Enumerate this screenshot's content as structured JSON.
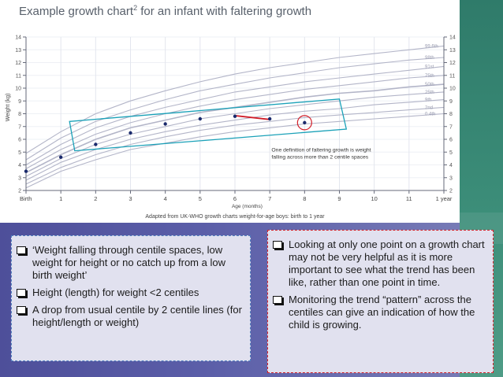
{
  "title": "Example growth chart",
  "title_sup": "2",
  "title_suffix": " for an infant with faltering growth",
  "chart_data": {
    "type": "line",
    "xlabel": "Age (months)",
    "ylabel": "Weight (kg)",
    "xlim": [
      0,
      12
    ],
    "ylim": [
      2,
      14
    ],
    "x_ticks": [
      "Birth",
      "1",
      "2",
      "3",
      "4",
      "5",
      "6",
      "7",
      "8",
      "9",
      "10",
      "11",
      "1 year"
    ],
    "y_ticks": [
      2,
      3,
      4,
      5,
      6,
      7,
      8,
      9,
      10,
      11,
      12,
      13,
      14
    ],
    "centile_labels": [
      "99.6th",
      "98th",
      "91st",
      "75th",
      "50th",
      "25th",
      "9th",
      "2nd",
      "0.4th"
    ],
    "centile_curves": [
      {
        "x": [
          0,
          1,
          2,
          3,
          4,
          5,
          6,
          7,
          8,
          9,
          10,
          11,
          12
        ],
        "y": [
          4.9,
          6.6,
          8.0,
          9.0,
          9.8,
          10.5,
          11.1,
          11.6,
          12.0,
          12.4,
          12.7,
          13.0,
          13.3
        ]
      },
      {
        "x": [
          0,
          1,
          2,
          3,
          4,
          5,
          6,
          7,
          8,
          9,
          10,
          11,
          12
        ],
        "y": [
          4.4,
          6.1,
          7.4,
          8.3,
          9.1,
          9.8,
          10.3,
          10.8,
          11.2,
          11.6,
          11.9,
          12.2,
          12.4
        ]
      },
      {
        "x": [
          0,
          1,
          2,
          3,
          4,
          5,
          6,
          7,
          8,
          9,
          10,
          11,
          12
        ],
        "y": [
          4.0,
          5.6,
          6.9,
          7.8,
          8.5,
          9.1,
          9.7,
          10.1,
          10.5,
          10.8,
          11.1,
          11.4,
          11.7
        ]
      },
      {
        "x": [
          0,
          1,
          2,
          3,
          4,
          5,
          6,
          7,
          8,
          9,
          10,
          11,
          12
        ],
        "y": [
          3.7,
          5.2,
          6.4,
          7.3,
          8.0,
          8.6,
          9.1,
          9.5,
          9.9,
          10.2,
          10.5,
          10.8,
          11.0
        ]
      },
      {
        "x": [
          0,
          1,
          2,
          3,
          4,
          5,
          6,
          7,
          8,
          9,
          10,
          11,
          12
        ],
        "y": [
          3.4,
          4.8,
          6.0,
          6.9,
          7.5,
          8.1,
          8.5,
          8.9,
          9.3,
          9.6,
          9.8,
          10.1,
          10.3
        ]
      },
      {
        "x": [
          0,
          1,
          2,
          3,
          4,
          5,
          6,
          7,
          8,
          9,
          10,
          11,
          12
        ],
        "y": [
          3.1,
          4.5,
          5.6,
          6.4,
          7.0,
          7.6,
          8.0,
          8.4,
          8.7,
          9.0,
          9.3,
          9.5,
          9.7
        ]
      },
      {
        "x": [
          0,
          1,
          2,
          3,
          4,
          5,
          6,
          7,
          8,
          9,
          10,
          11,
          12
        ],
        "y": [
          2.8,
          4.2,
          5.2,
          6.0,
          6.6,
          7.1,
          7.5,
          7.9,
          8.2,
          8.4,
          8.7,
          8.9,
          9.1
        ]
      },
      {
        "x": [
          0,
          1,
          2,
          3,
          4,
          5,
          6,
          7,
          8,
          9,
          10,
          11,
          12
        ],
        "y": [
          2.5,
          3.8,
          4.8,
          5.6,
          6.2,
          6.7,
          7.1,
          7.4,
          7.7,
          7.9,
          8.1,
          8.3,
          8.5
        ]
      },
      {
        "x": [
          0,
          1,
          2,
          3,
          4,
          5,
          6,
          7,
          8,
          9,
          10,
          11,
          12
        ],
        "y": [
          2.2,
          3.5,
          4.4,
          5.2,
          5.7,
          6.2,
          6.6,
          6.9,
          7.2,
          7.4,
          7.6,
          7.8,
          8.0
        ]
      }
    ],
    "points": [
      {
        "x": 0,
        "y": 3.5
      },
      {
        "x": 1,
        "y": 4.6
      },
      {
        "x": 2,
        "y": 5.6
      },
      {
        "x": 3,
        "y": 6.5
      },
      {
        "x": 4,
        "y": 7.2
      },
      {
        "x": 5,
        "y": 7.6
      },
      {
        "x": 6,
        "y": 7.8
      },
      {
        "x": 7,
        "y": 7.6
      },
      {
        "x": 8,
        "y": 7.3
      }
    ],
    "trend_segment": {
      "x": [
        6,
        7
      ],
      "y": [
        7.85,
        7.55
      ]
    },
    "annotation": [
      "One definition of faltering growth is weight",
      "falling across more than 2 centile spaces"
    ],
    "source": "Adapted from UK-WHO growth charts weight-for-age boys: birth to 1 year",
    "colors": {
      "centile": "#b3b5c8",
      "points": "#1a2a6c",
      "box": "#1aa1b8",
      "circle": "#d11f2a",
      "trend": "#d11f2a"
    }
  },
  "left_bullets": [
    "‘Weight falling through centile spaces, low weight for height or no catch up from a low birth weight’",
    "Height (length) for weight <2 centiles",
    "A drop from usual centile by 2 centile lines (for height/length or weight)"
  ],
  "right_bullets": [
    "Looking at only one point on a growth chart may not be very helpful as it is more important to see what the trend has been like, rather  than  one point in time.",
    "Monitoring the trend “pattern” across the centiles can give an indication of how the child is growing."
  ]
}
